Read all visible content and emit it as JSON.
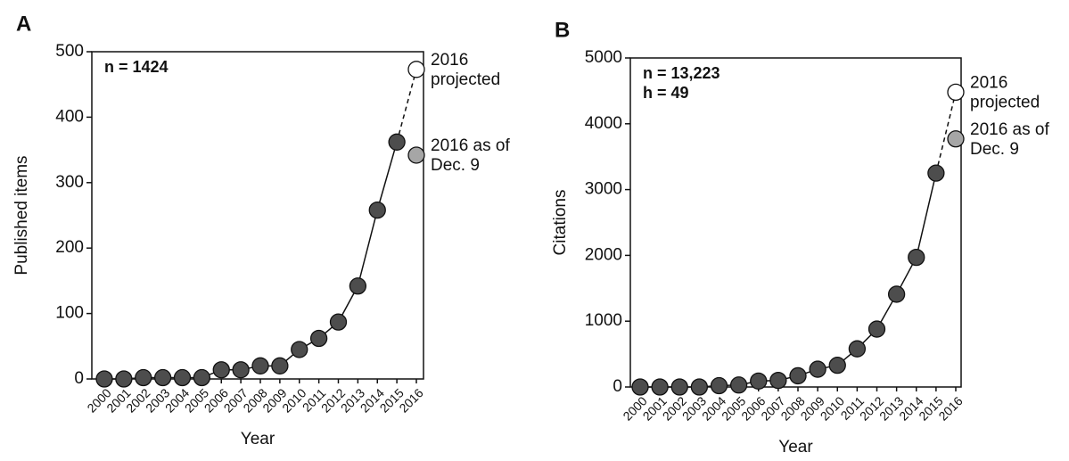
{
  "chart_data": [
    {
      "type": "line",
      "panel": "A",
      "ylabel": "Published items",
      "xlabel": "Year",
      "stats": [
        "n = 1424"
      ],
      "categories": [
        "2000",
        "2001",
        "2002",
        "2003",
        "2004",
        "2005",
        "2006",
        "2007",
        "2008",
        "2009",
        "2010",
        "2011",
        "2012",
        "2013",
        "2014",
        "2015",
        "2016"
      ],
      "ylim": [
        0,
        500
      ],
      "yticks": [
        0,
        100,
        200,
        300,
        400,
        500
      ],
      "series": [
        {
          "color": "#4d4d4d",
          "values": [
            0,
            0,
            2,
            2,
            2,
            2,
            14,
            14,
            20,
            20,
            45,
            62,
            87,
            142,
            258,
            362,
            null
          ]
        },
        {
          "name_lines": [
            "2016",
            "projected"
          ],
          "color": "#ffffff",
          "dashed_link": true,
          "values": [
            null,
            null,
            null,
            null,
            null,
            null,
            null,
            null,
            null,
            null,
            null,
            null,
            null,
            null,
            null,
            null,
            473
          ]
        },
        {
          "name_lines": [
            "2016 as of",
            "Dec. 9"
          ],
          "color": "#a6a6a6",
          "values": [
            null,
            null,
            null,
            null,
            null,
            null,
            null,
            null,
            null,
            null,
            null,
            null,
            null,
            null,
            null,
            null,
            342
          ]
        }
      ]
    },
    {
      "type": "line",
      "panel": "B",
      "ylabel": "Citations",
      "xlabel": "Year",
      "stats": [
        "n = 13,223",
        "h = 49"
      ],
      "categories": [
        "2000",
        "2001",
        "2002",
        "2003",
        "2004",
        "2005",
        "2006",
        "2007",
        "2008",
        "2009",
        "2010",
        "2011",
        "2012",
        "2013",
        "2014",
        "2015",
        "2016"
      ],
      "ylim": [
        0,
        5000
      ],
      "yticks": [
        0,
        1000,
        2000,
        3000,
        4000,
        5000
      ],
      "series": [
        {
          "color": "#4d4d4d",
          "values": [
            0,
            0,
            0,
            0,
            20,
            30,
            90,
            100,
            170,
            270,
            330,
            580,
            880,
            1410,
            1970,
            3250,
            null
          ]
        },
        {
          "name_lines": [
            "2016",
            "projected"
          ],
          "color": "#ffffff",
          "dashed_link": true,
          "values": [
            null,
            null,
            null,
            null,
            null,
            null,
            null,
            null,
            null,
            null,
            null,
            null,
            null,
            null,
            null,
            null,
            4480
          ]
        },
        {
          "name_lines": [
            "2016 as of",
            "Dec. 9"
          ],
          "color": "#a6a6a6",
          "values": [
            null,
            null,
            null,
            null,
            null,
            null,
            null,
            null,
            null,
            null,
            null,
            null,
            null,
            null,
            null,
            null,
            3770
          ]
        }
      ]
    }
  ]
}
